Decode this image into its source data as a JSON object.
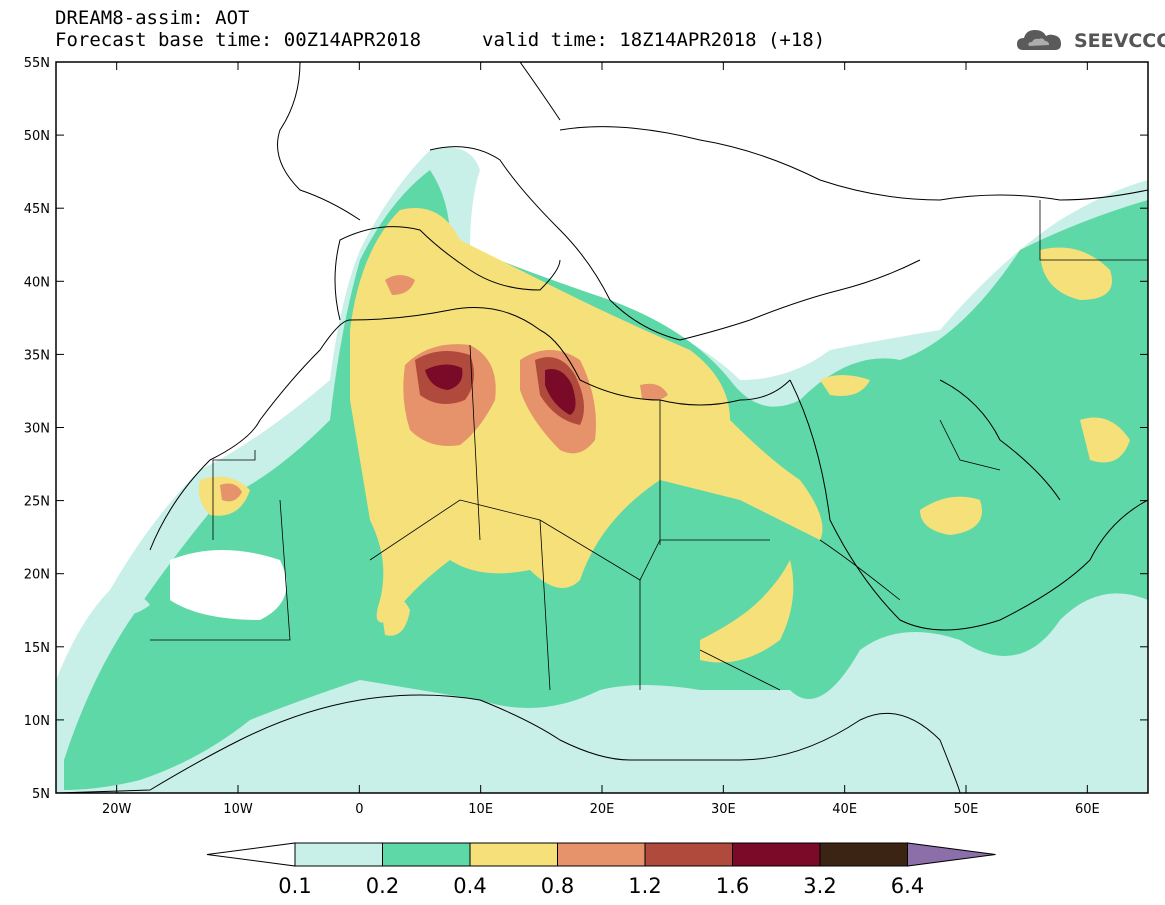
{
  "header": {
    "title": "DREAM8-assim: AOT",
    "base_time": "Forecast base time: 00Z14APR2018",
    "valid_time": "valid time: 18Z14APR2018 (+18)",
    "logo_text": "SEEVCCC"
  },
  "map": {
    "lat_ticks": [
      "55N",
      "50N",
      "45N",
      "40N",
      "35N",
      "30N",
      "25N",
      "20N",
      "15N",
      "10N",
      "5N"
    ],
    "lon_ticks": [
      "20W",
      "10W",
      "0",
      "10E",
      "20E",
      "30E",
      "40E",
      "50E",
      "60E"
    ],
    "extent": {
      "lon_min": -25,
      "lon_max": 65,
      "lat_min": 5,
      "lat_max": 55
    }
  },
  "legend": {
    "levels": [
      "0.1",
      "0.2",
      "0.4",
      "0.8",
      "1.2",
      "1.6",
      "3.2",
      "6.4"
    ],
    "colors": [
      "#ffffff",
      "#c8f0e8",
      "#5fd8a8",
      "#f5e07a",
      "#e6926a",
      "#b04a3c",
      "#7a0a28",
      "#3c2414",
      "#8c6ea8"
    ]
  }
}
